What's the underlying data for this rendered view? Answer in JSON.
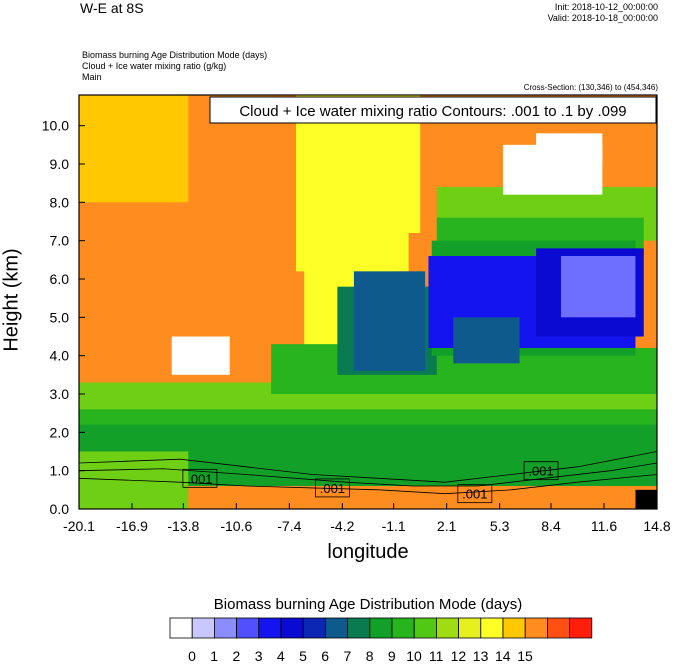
{
  "header": {
    "title": "W-E at 8S",
    "init": "Init: 2018-10-12_00:00:00",
    "valid": "Valid: 2018-10-18_00:00:00",
    "field1": "Biomass burning Age Distribution Mode    (days)",
    "field2": "Cloud + Ice water mixing ratio    (g/kg)",
    "field3": "Main",
    "cross_section": "Cross-Section: (130,346) to (454,346)"
  },
  "chart_data": {
    "type": "heatmap",
    "title": "W-E at 8S",
    "xlabel": "longitude",
    "ylabel": "Height (km)",
    "xticks": [
      "-20.1",
      "-16.9",
      "-13.8",
      "-10.6",
      "-7.4",
      "-4.2",
      "-1.1",
      "2.1",
      "5.3",
      "8.4",
      "11.6",
      "14.8"
    ],
    "xtick_values": [
      -20.1,
      -16.9,
      -13.8,
      -10.6,
      -7.4,
      -4.2,
      -1.1,
      2.1,
      5.3,
      8.4,
      11.6,
      14.8
    ],
    "yticks": [
      "0.0",
      "1.0",
      "2.0",
      "3.0",
      "4.0",
      "5.0",
      "6.0",
      "7.0",
      "8.0",
      "9.0",
      "10.0"
    ],
    "ytick_values": [
      0,
      1,
      2,
      3,
      4,
      5,
      6,
      7,
      8,
      9,
      10
    ],
    "xlim": [
      -20.1,
      14.8
    ],
    "ylim": [
      0,
      10.8
    ],
    "contour_title": "Cloud + Ice water mixing ratio Contours: .001 to .1 by .099",
    "contour_labels": [
      {
        "text": ".001",
        "x": -12.8,
        "y": 0.8
      },
      {
        "text": ".001",
        "x": -4.8,
        "y": 0.55
      },
      {
        "text": ".001",
        "x": 3.8,
        "y": 0.4
      },
      {
        "text": ".001",
        "x": 7.8,
        "y": 1.0
      }
    ],
    "colorbar": {
      "title": "Biomass burning Age Distribution Mode  (days)",
      "labels": [
        "0",
        "1",
        "2",
        "3",
        "4",
        "5",
        "6",
        "7",
        "8",
        "9",
        "10",
        "11",
        "12",
        "13",
        "14",
        "15"
      ],
      "colors": [
        "#ffffff",
        "#c8c8ff",
        "#8c8cff",
        "#5050ff",
        "#1414f0",
        "#0a0ad2",
        "#0a28b4",
        "#0f5a8c",
        "#0a7a50",
        "#12a028",
        "#28b41e",
        "#50c814",
        "#a0dc14",
        "#e6f01e",
        "#ffff28",
        "#ffc800",
        "#ff8c1e",
        "#ff5014",
        "#ff1e0a"
      ]
    },
    "regions": [
      {
        "x0": -20.1,
        "x1": 14.8,
        "y0": 0,
        "y1": 10.8,
        "v": 14
      },
      {
        "x0": -20.1,
        "x1": -13.5,
        "y0": 8.0,
        "y1": 10.8,
        "v": 13
      },
      {
        "x0": -7.0,
        "x1": -0.2,
        "y0": 6.2,
        "y1": 10.8,
        "v": 12
      },
      {
        "x0": -6.5,
        "x1": -0.8,
        "y0": 3.5,
        "y1": 6.6,
        "v": 12
      },
      {
        "x0": -1.0,
        "x1": 0.5,
        "y0": 7.2,
        "y1": 10.8,
        "v": 12
      },
      {
        "x0": -20.1,
        "x1": 14.8,
        "y0": 0.4,
        "y1": 2.9,
        "v": 10
      },
      {
        "x0": -20.1,
        "x1": 14.8,
        "y0": 2.6,
        "y1": 3.3,
        "v": 11
      },
      {
        "x0": -8.5,
        "x1": -3.0,
        "y0": 3.0,
        "y1": 4.3,
        "v": 10
      },
      {
        "x0": -5.5,
        "x1": 14.8,
        "y0": 3.0,
        "y1": 4.2,
        "v": 10
      },
      {
        "x0": -20.1,
        "x1": 14.8,
        "y0": 0.6,
        "y1": 2.2,
        "v": 9
      },
      {
        "x0": -4.5,
        "x1": 1.5,
        "y0": 3.5,
        "y1": 5.8,
        "v": 8
      },
      {
        "x0": -3.5,
        "x1": 0.8,
        "y0": 3.6,
        "y1": 6.2,
        "v": 7
      },
      {
        "x0": 1.5,
        "x1": 14.8,
        "y0": 7.0,
        "y1": 8.4,
        "v": 11
      },
      {
        "x0": 1.5,
        "x1": 14.0,
        "y0": 6.6,
        "y1": 7.6,
        "v": 10
      },
      {
        "x0": 1.2,
        "x1": 13.5,
        "y0": 4.0,
        "y1": 7.0,
        "v": 9
      },
      {
        "x0": 1.0,
        "x1": 13.5,
        "y0": 4.2,
        "y1": 6.6,
        "v": 4
      },
      {
        "x0": 7.5,
        "x1": 14.0,
        "y0": 4.5,
        "y1": 6.8,
        "v": 5
      },
      {
        "x0": 9.0,
        "x1": 13.5,
        "y0": 5.0,
        "y1": 6.6,
        "v": 2
      },
      {
        "x0": 2.5,
        "x1": 6.5,
        "y0": 3.8,
        "y1": 5.0,
        "v": 6
      },
      {
        "x0": -20.1,
        "x1": -13.5,
        "y0": 0.0,
        "y1": 1.5,
        "v": 11
      },
      {
        "x0": -13.5,
        "x1": 14.8,
        "y0": 0.0,
        "y1": 0.6,
        "v": 14
      },
      {
        "x0": 13.5,
        "x1": 14.8,
        "y0": 0.0,
        "y1": 0.5,
        "v": 16
      },
      {
        "x0": -14.5,
        "x1": -11.0,
        "y0": 3.5,
        "y1": 4.5,
        "v": 0
      },
      {
        "x0": 5.5,
        "x1": 11.5,
        "y0": 8.2,
        "y1": 9.5,
        "v": 0
      },
      {
        "x0": 7.5,
        "x1": 11.5,
        "y0": 9.0,
        "y1": 9.8,
        "v": 0
      }
    ]
  }
}
